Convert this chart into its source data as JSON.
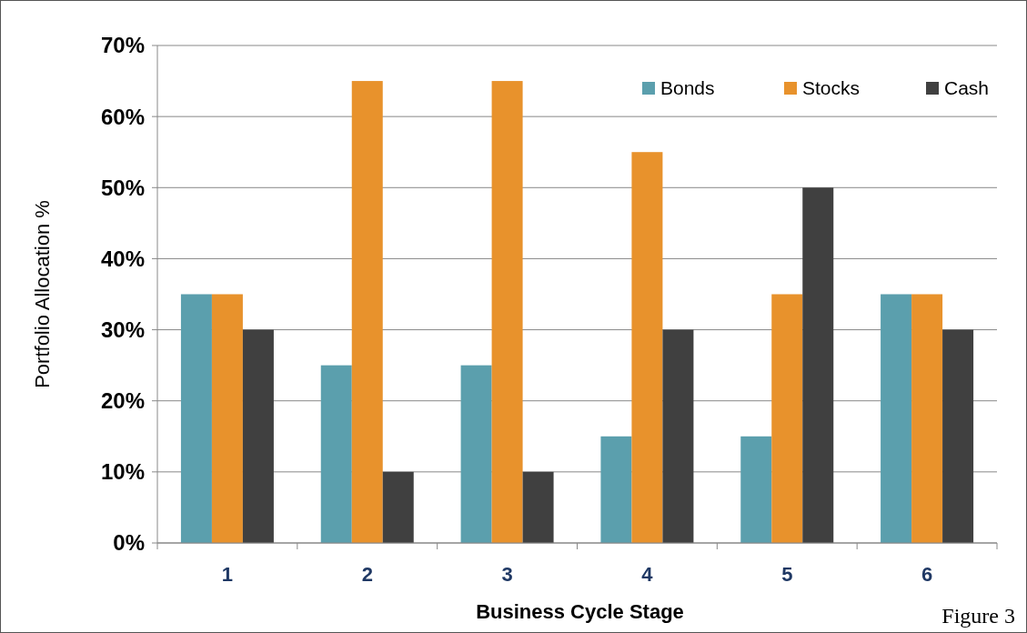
{
  "chart_data": {
    "type": "bar",
    "xlabel": "Business Cycle Stage",
    "ylabel": "Portfolio Allocation %",
    "categories": [
      "1",
      "2",
      "3",
      "4",
      "5",
      "6"
    ],
    "series": [
      {
        "name": "Bonds",
        "color": "#5b9fad",
        "values": [
          35,
          25,
          25,
          15,
          15,
          35
        ]
      },
      {
        "name": "Stocks",
        "color": "#e8922c",
        "values": [
          35,
          65,
          65,
          55,
          35,
          35
        ]
      },
      {
        "name": "Cash",
        "color": "#404040",
        "values": [
          30,
          10,
          10,
          30,
          50,
          30
        ]
      }
    ],
    "ylim": [
      0,
      70
    ],
    "yticks": [
      {
        "value": 0,
        "label": "0%"
      },
      {
        "value": 10,
        "label": "10%"
      },
      {
        "value": 20,
        "label": "20%"
      },
      {
        "value": 30,
        "label": "30%"
      },
      {
        "value": 40,
        "label": "40%"
      },
      {
        "value": 50,
        "label": "50%"
      },
      {
        "value": 60,
        "label": "60%"
      },
      {
        "value": 70,
        "label": "70%"
      }
    ],
    "grid": "y",
    "legend": "top right",
    "annotations": [
      "Figure 3"
    ]
  }
}
